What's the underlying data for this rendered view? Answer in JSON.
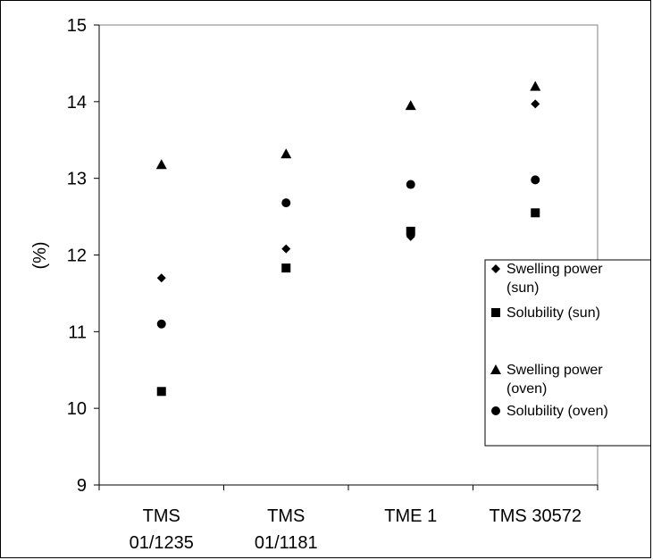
{
  "chart_data": {
    "type": "scatter",
    "title": "",
    "xlabel": "",
    "ylabel": "(%)",
    "ylim": [
      9,
      15
    ],
    "yticks": [
      "9",
      "10",
      "11",
      "12",
      "13",
      "14",
      "15"
    ],
    "categories": [
      [
        "TMS",
        "01/1235"
      ],
      [
        "TMS",
        "01/1181"
      ],
      [
        "TME 1"
      ],
      [
        "TMS 30572"
      ]
    ],
    "grid": false,
    "legend_position": "right",
    "series": [
      {
        "name": [
          "Swelling power",
          "(sun)"
        ],
        "marker": "diamond",
        "values": [
          11.7,
          12.08,
          12.24,
          13.97
        ]
      },
      {
        "name": [
          "Solubility (sun)"
        ],
        "marker": "square",
        "values": [
          10.22,
          11.83,
          12.31,
          12.55
        ]
      },
      {
        "name": [
          "Swelling power",
          "(oven)"
        ],
        "marker": "triangle",
        "values": [
          13.18,
          13.32,
          13.95,
          14.2
        ]
      },
      {
        "name": [
          "Solubility (oven)"
        ],
        "marker": "circle",
        "values": [
          11.1,
          12.68,
          12.92,
          12.98
        ]
      }
    ]
  }
}
